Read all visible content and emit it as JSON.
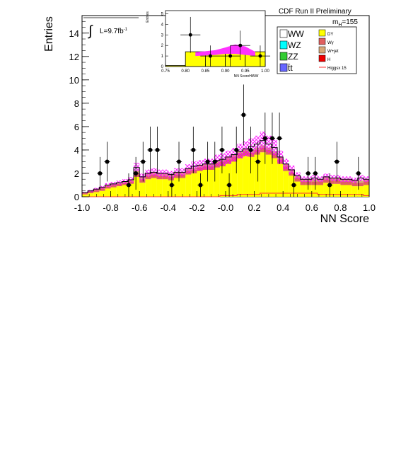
{
  "chart_data": {
    "type": "histogram",
    "title": "CDF Run II Preliminary",
    "xlabel": "NN Score",
    "ylabel": "Entries",
    "xlim": [
      -1.0,
      1.0
    ],
    "ylim": [
      0,
      15.5
    ],
    "x_ticks": [
      "-1.0",
      "-0.8",
      "-0.6",
      "-0.4",
      "-0.2",
      "-0.0",
      "0.2",
      "0.4",
      "0.6",
      "0.8",
      "1.0"
    ],
    "y_ticks": [
      "0",
      "2",
      "4",
      "6",
      "8",
      "10",
      "12",
      "14"
    ],
    "luminosity_label": "L=9.7fb",
    "luminosity_exponent": "-1",
    "mass_label": "m",
    "mass_sub": "H",
    "mass_value": "=155",
    "bin_edges": [
      -1.0,
      0.05
    ],
    "stack_layers": [
      {
        "name": "DY",
        "color": "#ffff00",
        "values": [
          0.2,
          0.3,
          0.4,
          0.5,
          0.7,
          0.8,
          0.9,
          1.0,
          1.1,
          1.7,
          1.2,
          1.5,
          1.6,
          1.5,
          1.5,
          1.4,
          1.6,
          1.6,
          1.9,
          2.0,
          2.2,
          2.3,
          2.3,
          2.5,
          2.6,
          2.8,
          3.0,
          3.3,
          3.5,
          3.4,
          3.6,
          3.8,
          3.6,
          3.3,
          2.8,
          2.2,
          1.8,
          1.3,
          1.0,
          1.0,
          1.0,
          1.0,
          1.2,
          1.1,
          1.1,
          1.0,
          1.0,
          0.9,
          0.9,
          1.0
        ]
      },
      {
        "name": "Wγ",
        "color": "#e06060",
        "values": [
          0.1,
          0.15,
          0.15,
          0.2,
          0.2,
          0.2,
          0.2,
          0.2,
          0.2,
          0.3,
          0.3,
          0.3,
          0.3,
          0.3,
          0.3,
          0.3,
          0.3,
          0.3,
          0.3,
          0.3,
          0.3,
          0.3,
          0.3,
          0.4,
          0.4,
          0.4,
          0.4,
          0.4,
          0.4,
          0.4,
          0.4,
          0.4,
          0.4,
          0.4,
          0.4,
          0.4,
          0.3,
          0.3,
          0.3,
          0.3,
          0.3,
          0.3,
          0.3,
          0.3,
          0.3,
          0.3,
          0.3,
          0.3,
          0.3,
          0.3
        ]
      },
      {
        "name": "W+jet",
        "color": "#d8a878",
        "values": [
          0.05,
          0.05,
          0.1,
          0.1,
          0.1,
          0.1,
          0.1,
          0.1,
          0.15,
          0.2,
          0.2,
          0.2,
          0.2,
          0.2,
          0.2,
          0.2,
          0.2,
          0.2,
          0.2,
          0.2,
          0.2,
          0.2,
          0.2,
          0.2,
          0.2,
          0.2,
          0.2,
          0.2,
          0.2,
          0.2,
          0.2,
          0.2,
          0.2,
          0.2,
          0.2,
          0.2,
          0.2,
          0.2,
          0.2,
          0.2,
          0.2,
          0.2,
          0.2,
          0.2,
          0.2,
          0.2,
          0.2,
          0.2,
          0.2,
          0.2
        ]
      },
      {
        "name": "H",
        "color": "#ee0000",
        "values": [
          0,
          0,
          0,
          0,
          0,
          0,
          0,
          0,
          0,
          0,
          0,
          0,
          0,
          0,
          0,
          0,
          0,
          0,
          0,
          0,
          0,
          0,
          0,
          0,
          0,
          0,
          0,
          0,
          0,
          0,
          0,
          0,
          0,
          0,
          0,
          0,
          0,
          0,
          0,
          0,
          0,
          0,
          0,
          0,
          0,
          0,
          0,
          0,
          0,
          0
        ]
      }
    ],
    "background_total": [
      0.35,
      0.5,
      0.65,
      0.8,
      1.0,
      1.1,
      1.2,
      1.3,
      1.45,
      2.5,
      1.7,
      2.0,
      2.1,
      2.0,
      2.0,
      1.9,
      2.1,
      2.1,
      2.4,
      2.6,
      2.7,
      2.8,
      2.8,
      3.1,
      3.2,
      3.4,
      3.6,
      3.9,
      4.1,
      4.3,
      4.5,
      4.8,
      4.5,
      4.2,
      3.4,
      2.8,
      2.3,
      1.8,
      1.5,
      1.5,
      1.6,
      1.5,
      1.7,
      1.6,
      1.6,
      1.5,
      1.5,
      1.4,
      1.6,
      1.5
    ],
    "uncertainty_band": {
      "name": "uncertainty",
      "color": "#ff00ff",
      "relative": 0.16
    },
    "signal_line": {
      "name": "Higgsx 15",
      "color": "#ff3333",
      "values": [
        0,
        0,
        0,
        0,
        0,
        0,
        0,
        0,
        0,
        0,
        0,
        0,
        0,
        0,
        0,
        0,
        0,
        0,
        0,
        0,
        0,
        0,
        0,
        0,
        0.1,
        0.1,
        0.1,
        0.2,
        0.2,
        0.2,
        0.2,
        0.3,
        0.3,
        0.3,
        0.3,
        0.3,
        0.3,
        0.3,
        0.3,
        0.3,
        0.3,
        0.2,
        0.2,
        0.2,
        0.2,
        0.2,
        0.2,
        0.2,
        0.2,
        0.1
      ]
    },
    "data_points": [
      {
        "x": -0.875,
        "y": 2,
        "err": 1.4
      },
      {
        "x": -0.825,
        "y": 3,
        "err": 1.7
      },
      {
        "x": -0.675,
        "y": 1,
        "err": 1.0
      },
      {
        "x": -0.625,
        "y": 2,
        "err": 1.4
      },
      {
        "x": -0.575,
        "y": 3,
        "err": 1.7
      },
      {
        "x": -0.525,
        "y": 4,
        "err": 2.0
      },
      {
        "x": -0.475,
        "y": 4,
        "err": 2.0
      },
      {
        "x": -0.375,
        "y": 1,
        "err": 1.0
      },
      {
        "x": -0.325,
        "y": 3,
        "err": 1.7
      },
      {
        "x": -0.225,
        "y": 4,
        "err": 2.0
      },
      {
        "x": -0.175,
        "y": 1,
        "err": 1.0
      },
      {
        "x": -0.125,
        "y": 3,
        "err": 1.7
      },
      {
        "x": -0.075,
        "y": 3,
        "err": 1.7
      },
      {
        "x": -0.025,
        "y": 4,
        "err": 2.0
      },
      {
        "x": 0.025,
        "y": 1,
        "err": 1.0
      },
      {
        "x": 0.075,
        "y": 4,
        "err": 2.0
      },
      {
        "x": 0.125,
        "y": 7,
        "err": 2.6
      },
      {
        "x": 0.175,
        "y": 4,
        "err": 2.0
      },
      {
        "x": 0.225,
        "y": 3,
        "err": 1.7
      },
      {
        "x": 0.275,
        "y": 5,
        "err": 2.2
      },
      {
        "x": 0.325,
        "y": 5,
        "err": 2.2
      },
      {
        "x": 0.375,
        "y": 5,
        "err": 2.2
      },
      {
        "x": 0.475,
        "y": 1,
        "err": 1.0
      },
      {
        "x": 0.575,
        "y": 2,
        "err": 1.4
      },
      {
        "x": 0.625,
        "y": 2,
        "err": 1.4
      },
      {
        "x": 0.725,
        "y": 1,
        "err": 1.0
      },
      {
        "x": 0.775,
        "y": 3,
        "err": 1.7
      },
      {
        "x": 0.925,
        "y": 2,
        "err": 1.4
      }
    ],
    "legend": {
      "placement": "top-right",
      "left_entries": [
        {
          "label": "WW",
          "color": "#ffffff"
        },
        {
          "label": "WZ",
          "color": "#00ffff"
        },
        {
          "label": "ZZ",
          "color": "#33cc33"
        },
        {
          "label": "t̄t",
          "color": "#6666ff"
        }
      ],
      "right_entries": [
        {
          "label": "DY",
          "color": "#ffff00"
        },
        {
          "label": "Wγ",
          "color": "#e06060"
        },
        {
          "label": "W+jet",
          "color": "#d8a878"
        },
        {
          "label": "H",
          "color": "#ee0000"
        },
        {
          "label": "Higgsx 15",
          "color": "#ff3333",
          "style": "line"
        }
      ]
    },
    "inset": {
      "xlabel": "NN ScoreHWW",
      "ylabel": "Entries",
      "xlim": [
        0.75,
        1.0
      ],
      "ylim": [
        0,
        5.3
      ],
      "x_ticks": [
        "0.75",
        "0.80",
        "0.85",
        "0.90",
        "0.95",
        "1.00"
      ],
      "y_ticks": [
        "0",
        "1",
        "2",
        "3",
        "4",
        "5"
      ],
      "bin_edges": [
        0.75,
        0.8,
        0.85,
        0.9,
        0.95,
        1.0
      ],
      "background_total": [
        0.1,
        1.4,
        1.4,
        1.4,
        1.4
      ],
      "band": {
        "x": [
          0.825,
          0.85,
          0.875,
          0.9,
          0.925,
          0.95,
          0.975
        ],
        "low": [
          1.0,
          1.05,
          1.1,
          1.2,
          1.2,
          1.1,
          1.0
        ],
        "high": [
          1.35,
          1.45,
          1.55,
          1.8,
          2.1,
          1.9,
          1.4
        ]
      },
      "data_points": [
        {
          "x": 0.8125,
          "y": 3,
          "err": 1.7
        },
        {
          "x": 0.8625,
          "y": 1,
          "err": 1.0
        },
        {
          "x": 0.9125,
          "y": 1,
          "err": 1.0
        },
        {
          "x": 0.9375,
          "y": 2,
          "err": 1.4
        },
        {
          "x": 0.9875,
          "y": 1,
          "err": 1.0
        }
      ]
    }
  }
}
